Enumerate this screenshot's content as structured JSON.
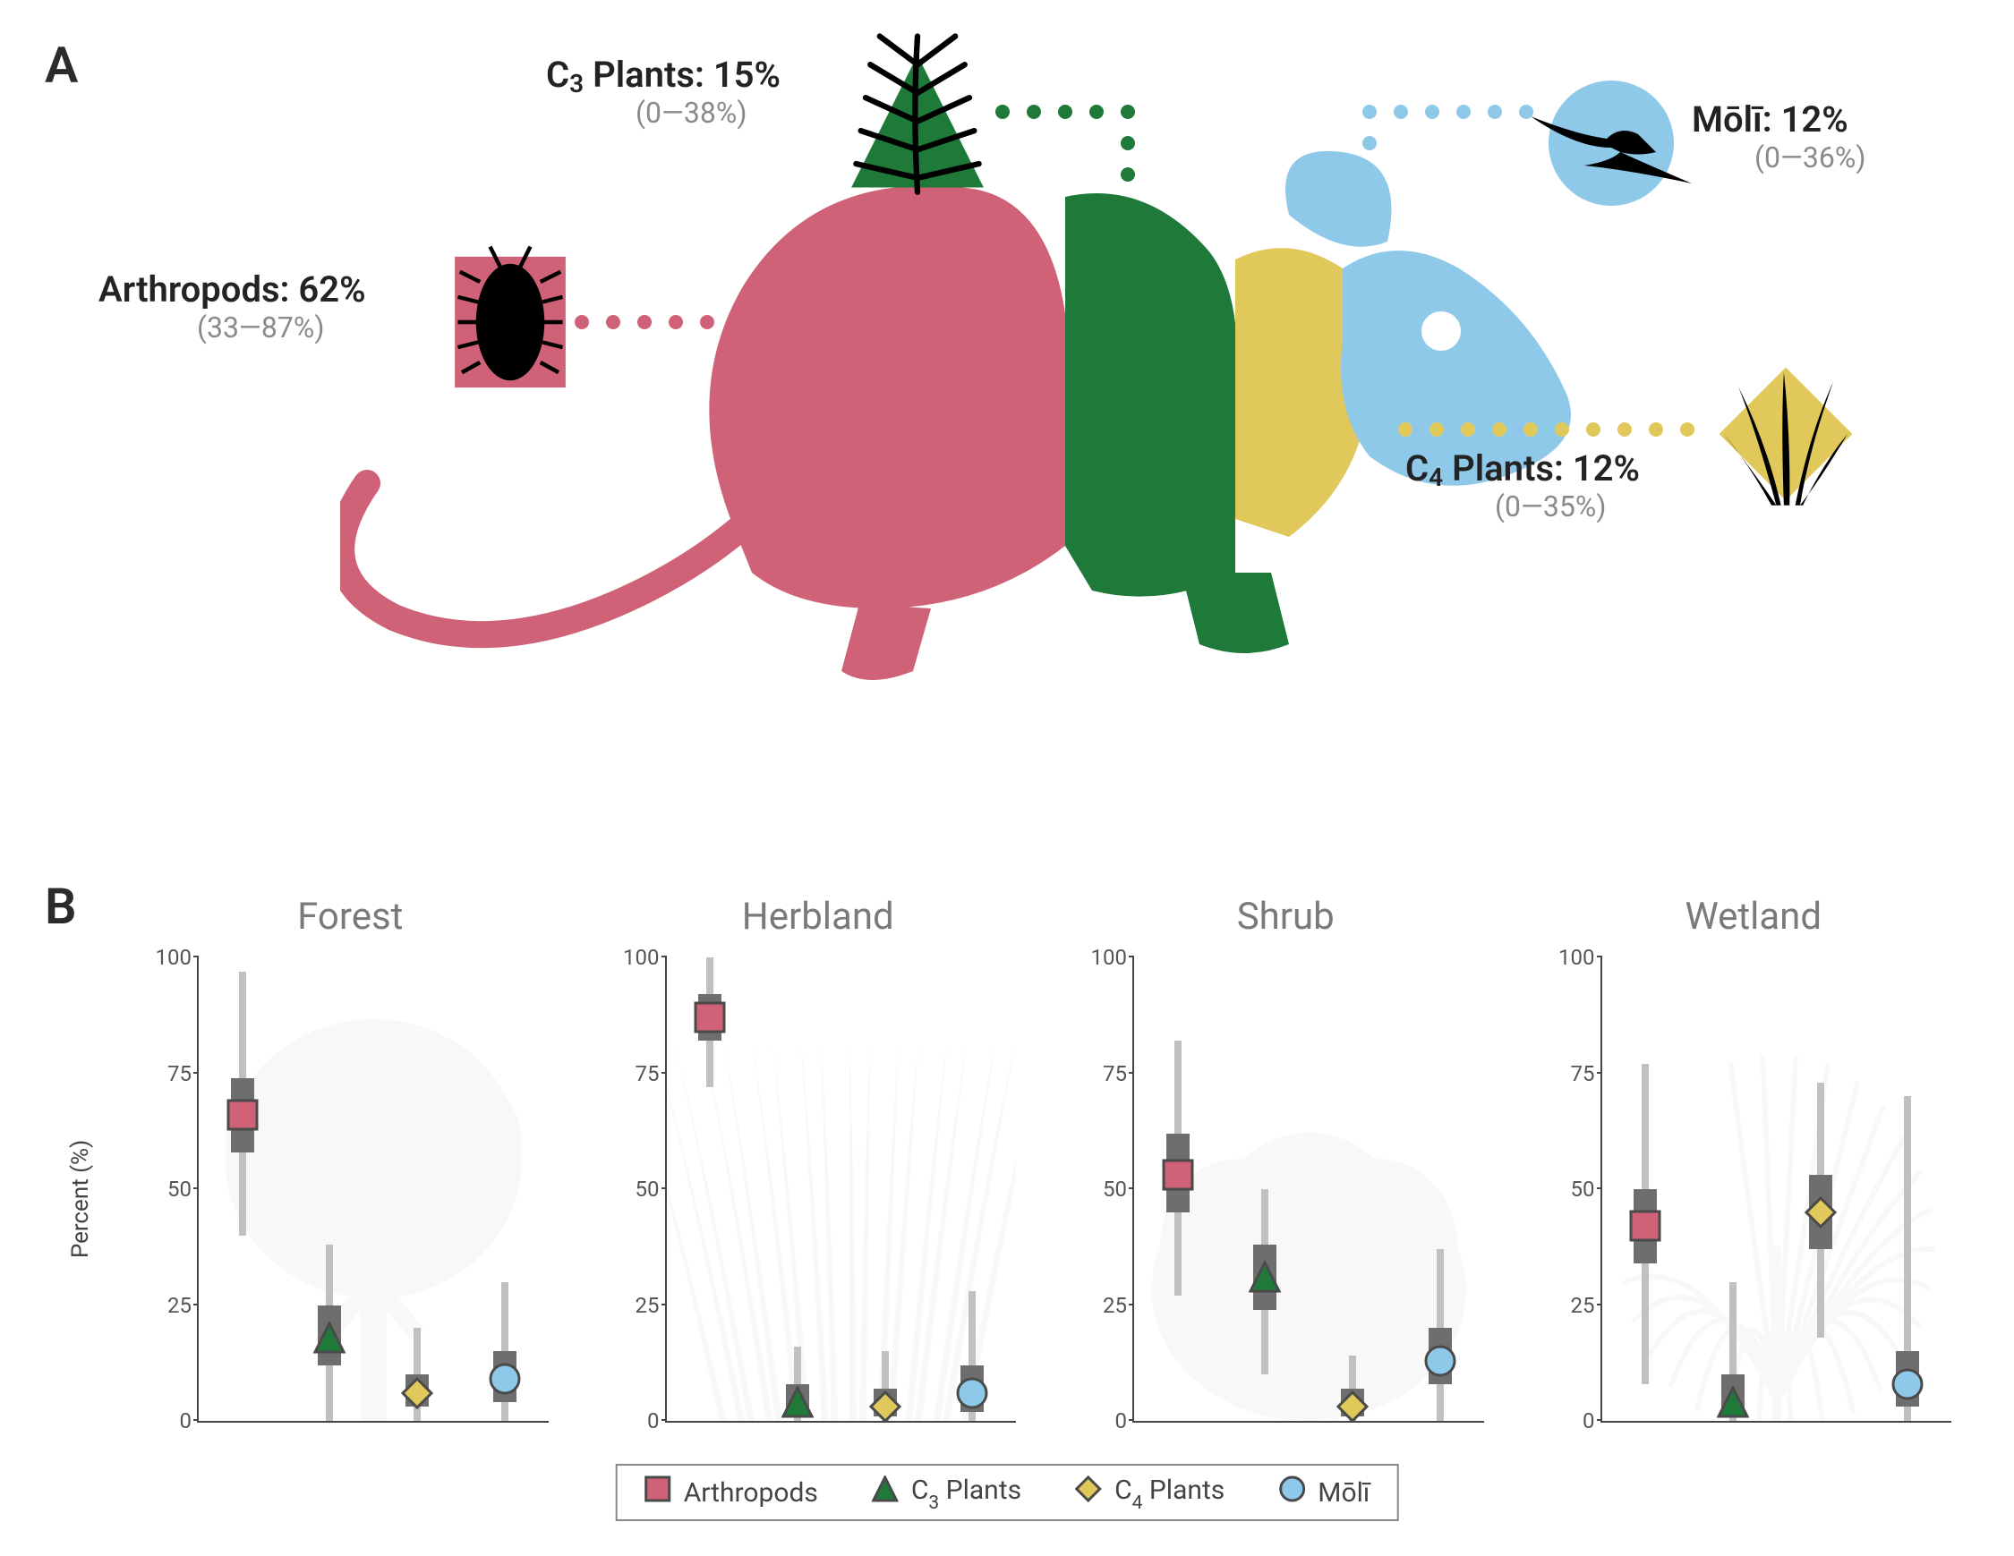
{
  "panels": {
    "a_label": "A",
    "b_label": "B"
  },
  "colors": {
    "arthropods": "#cf6276",
    "c3": "#1f7a3a",
    "c4": "#e0c95a",
    "moli": "#8fc9ea",
    "marker_stroke": "#4a4a4a",
    "box": "#6e6e6e",
    "whisker": "#c0c0c0",
    "text_dark": "#232323",
    "text_muted": "#8a8a8a",
    "chart_title": "#7a7a7a",
    "silhouette": "#d7d7d7",
    "black": "#000000"
  },
  "panel_a": {
    "callouts": {
      "arthropods": {
        "title_prefix": "Arthropods: ",
        "value": "62%",
        "range": "(33—87%)"
      },
      "c3": {
        "title_prefix": "C",
        "title_sub": "3",
        "title_suffix": " Plants: ",
        "value": "15%",
        "range": "(0—38%)"
      },
      "moli": {
        "title_prefix": "Mōlī: ",
        "value": "12%",
        "range": "(0—36%)"
      },
      "c4": {
        "title_prefix": "C",
        "title_sub": "4",
        "title_suffix": " Plants: ",
        "value": "12%",
        "range": "(0—35%)"
      }
    }
  },
  "panel_b": {
    "y_axis_label": "Percent (%)",
    "y_ticks": [
      0,
      25,
      50,
      75,
      100
    ],
    "ylim": [
      0,
      100
    ],
    "series_order": [
      "arthropods",
      "c3",
      "c4",
      "moli"
    ],
    "series_meta": {
      "arthropods": {
        "label": "Arthropods",
        "shape": "square",
        "color_key": "arthropods"
      },
      "c3": {
        "label_prefix": "C",
        "label_sub": "3",
        "label_suffix": " Plants",
        "shape": "triangle",
        "color_key": "c3"
      },
      "c4": {
        "label_prefix": "C",
        "label_sub": "4",
        "label_suffix": " Plants",
        "shape": "diamond",
        "color_key": "c4"
      },
      "moli": {
        "label": "Mōlī",
        "shape": "circle",
        "color_key": "moli"
      }
    },
    "habitats": [
      {
        "name": "Forest",
        "bg": "tree",
        "points": {
          "arthropods": {
            "median": 66,
            "box": [
              58,
              74
            ],
            "whisker": [
              40,
              97
            ]
          },
          "c3": {
            "median": 18,
            "box": [
              12,
              25
            ],
            "whisker": [
              0,
              38
            ]
          },
          "c4": {
            "median": 6,
            "box": [
              3,
              10
            ],
            "whisker": [
              0,
              20
            ]
          },
          "moli": {
            "median": 9,
            "box": [
              4,
              15
            ],
            "whisker": [
              0,
              30
            ]
          }
        }
      },
      {
        "name": "Herbland",
        "bg": "grass",
        "points": {
          "arthropods": {
            "median": 87,
            "box": [
              82,
              92
            ],
            "whisker": [
              72,
              100
            ]
          },
          "c3": {
            "median": 4,
            "box": [
              1,
              8
            ],
            "whisker": [
              0,
              16
            ]
          },
          "c4": {
            "median": 3,
            "box": [
              1,
              7
            ],
            "whisker": [
              0,
              15
            ]
          },
          "moli": {
            "median": 6,
            "box": [
              2,
              12
            ],
            "whisker": [
              0,
              28
            ]
          }
        }
      },
      {
        "name": "Shrub",
        "bg": "shrub",
        "points": {
          "arthropods": {
            "median": 53,
            "box": [
              45,
              62
            ],
            "whisker": [
              27,
              82
            ]
          },
          "c3": {
            "median": 31,
            "box": [
              24,
              38
            ],
            "whisker": [
              10,
              50
            ]
          },
          "c4": {
            "median": 3,
            "box": [
              1,
              7
            ],
            "whisker": [
              0,
              14
            ]
          },
          "moli": {
            "median": 13,
            "box": [
              8,
              20
            ],
            "whisker": [
              0,
              37
            ]
          }
        }
      },
      {
        "name": "Wetland",
        "bg": "sedge",
        "points": {
          "arthropods": {
            "median": 42,
            "box": [
              34,
              50
            ],
            "whisker": [
              8,
              77
            ]
          },
          "c3": {
            "median": 4,
            "box": [
              1,
              10
            ],
            "whisker": [
              0,
              30
            ]
          },
          "c4": {
            "median": 45,
            "box": [
              37,
              53
            ],
            "whisker": [
              18,
              73
            ]
          },
          "moli": {
            "median": 8,
            "box": [
              3,
              15
            ],
            "whisker": [
              0,
              70
            ]
          }
        }
      }
    ],
    "marker_size": 36,
    "legend_marker_size": 30
  }
}
